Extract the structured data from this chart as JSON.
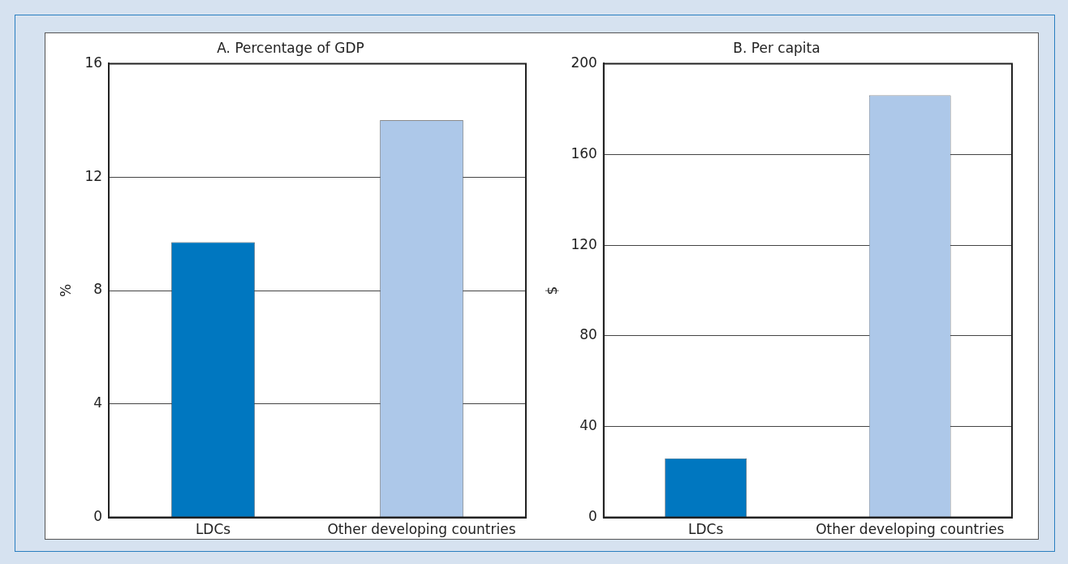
{
  "chart_data": [
    {
      "type": "bar",
      "title": "A. Percentage of GDP",
      "ylabel": "%",
      "categories": [
        "LDCs",
        "Other developing countries"
      ],
      "values": [
        9.7,
        14.0
      ],
      "colors": [
        "#0077c0",
        "#adc8e9"
      ],
      "ylim": [
        0,
        16
      ],
      "yticks": [
        0,
        4,
        8,
        12,
        16
      ],
      "grid": "y",
      "legend": false
    },
    {
      "type": "bar",
      "title": "B. Per capita",
      "ylabel": "$",
      "categories": [
        "LDCs",
        "Other developing countries"
      ],
      "values": [
        26,
        186
      ],
      "colors": [
        "#0077c0",
        "#adc8e9"
      ],
      "ylim": [
        0,
        200
      ],
      "yticks": [
        0,
        40,
        80,
        120,
        160,
        200
      ],
      "grid": "y",
      "legend": false
    }
  ]
}
